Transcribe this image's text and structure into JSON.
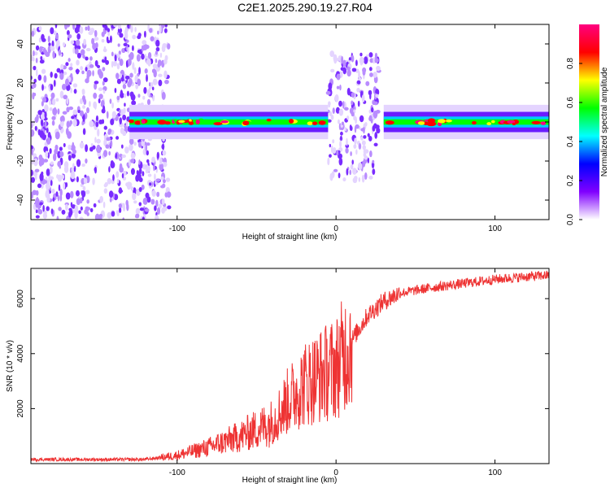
{
  "title": "C2E1.2025.290.19.27.R04",
  "chart_data": [
    {
      "type": "heatmap",
      "name": "spectrogram",
      "xlabel": "Height of straight line (km)",
      "ylabel": "Frequency (Hz)",
      "xlim": [
        -192,
        134
      ],
      "ylim": [
        -50,
        50
      ],
      "xticks": [
        -100,
        0,
        100
      ],
      "xtick_labels": [
        "-100",
        "0",
        "100"
      ],
      "yticks": [
        -40,
        -20,
        0,
        20,
        40
      ],
      "ytick_labels": [
        "-40",
        "-20",
        "0",
        "20",
        "40"
      ],
      "colorbar": {
        "label": "Normalized spectral amplitude",
        "range": [
          0,
          1
        ],
        "ticks": [
          0.0,
          0.2,
          0.4,
          0.6,
          0.8
        ],
        "tick_labels": [
          "0.0",
          "0.2",
          "0.4",
          "0.6",
          "0.8"
        ],
        "colors": [
          "#ffffff",
          "#8000ff",
          "#0000ff",
          "#00ffff",
          "#00ff00",
          "#ffff00",
          "#ff0000",
          "#ff0080"
        ]
      },
      "regions": [
        {
          "name": "noise-left",
          "x": [
            -192,
            -105
          ],
          "f": [
            -50,
            50
          ],
          "amp": 0.15
        },
        {
          "name": "noise-mid",
          "x": [
            -5,
            27
          ],
          "f": [
            -30,
            35
          ],
          "amp": 0.15
        },
        {
          "name": "signal-band",
          "x": [
            -130,
            -5
          ],
          "f": [
            -2,
            2
          ],
          "amp": 0.55
        },
        {
          "name": "carrier",
          "x": [
            30,
            134
          ],
          "f": [
            -2,
            2
          ],
          "amp": 0.6
        }
      ]
    },
    {
      "type": "line",
      "name": "snr",
      "xlabel": "Height of straight line (km)",
      "ylabel": "SNR (10 * v/v)",
      "xlim": [
        -192,
        134
      ],
      "ylim": [
        0,
        7100
      ],
      "xticks": [
        -100,
        0,
        100
      ],
      "xtick_labels": [
        "-100",
        "0",
        "100"
      ],
      "yticks": [
        2000,
        4000,
        6000
      ],
      "ytick_labels": [
        "2000",
        "4000",
        "6000"
      ],
      "color": "#ee3333",
      "trend": {
        "x": [
          -192,
          -120,
          -100,
          -80,
          -60,
          -40,
          -30,
          -20,
          -10,
          0,
          10,
          20,
          30,
          40,
          60,
          80,
          100,
          120,
          134
        ],
        "y": [
          150,
          150,
          300,
          600,
          1000,
          1500,
          2300,
          2900,
          3200,
          3500,
          4500,
          5400,
          5900,
          6200,
          6400,
          6550,
          6700,
          6800,
          6850
        ]
      }
    }
  ]
}
